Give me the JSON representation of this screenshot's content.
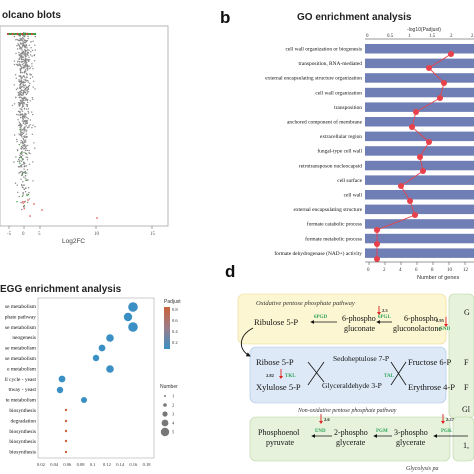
{
  "panel_a": {
    "title": "olcano blots",
    "xlabel": "Log2FC",
    "ticks": [
      "-5",
      "0",
      "5",
      "10",
      "15"
    ]
  },
  "panel_b": {
    "label": "b",
    "title": "GO enrichment analysis",
    "top_axis_label": "-log10(Padjust)",
    "top_ticks": [
      "0",
      "0.5",
      "1",
      "1.5",
      "2",
      "2.5"
    ],
    "bottom_axis_label": "Number of genes",
    "bottom_ticks": [
      "0",
      "2",
      "4",
      "6",
      "8",
      "10",
      "12",
      "14"
    ]
  },
  "panel_c": {
    "title": "EGG enrichment analysis",
    "legend_padj_title": "Padjust",
    "legend_padj_values": [
      "0.8",
      "0.6",
      "0.4",
      "0.2"
    ],
    "legend_number_title": "Number",
    "legend_number_values": [
      "1",
      "2",
      "3",
      "4",
      "5"
    ],
    "terms": [
      "se metabolism",
      "phate pathway",
      "se metabolism",
      "neogenesis",
      "se metabolism",
      "se metabolism",
      "e metabolism",
      "ll cycle - yeast",
      "ttway - yeast",
      "te metabolism",
      "biosynthesis",
      "degradation",
      "biosynthesis",
      "biosynthesis",
      "biosynthesis"
    ],
    "ticks": [
      "0.02",
      "0.04",
      "0.06",
      "0.08",
      "0.1",
      "0.12",
      "0.14",
      "0.16",
      "0.18"
    ]
  },
  "panel_d": {
    "label": "d",
    "ox_title": "Oxidative pentose phosphate pathway",
    "nonox_title": "Non-oxidative pentose phosphate pathway",
    "glyco_title": "Glycolysis pa",
    "ribulose": "Ribulose 5-P",
    "sixpg_1": "6-phospho",
    "sixpg_2": "gluconate",
    "sixpgl_1": "6-phospho",
    "sixpgl_2": "gluconolactone",
    "ribose": "Ribose 5-P",
    "xylulose": "Xylulose 5-P",
    "sedo": "Sedoheptulose 7-P",
    "glyceraldehyde": "Glyceraldehyde 3-P",
    "fructose": "Fructose 6-P",
    "erythrose": "Erythrose 4-P",
    "pep_1": "Phosphoenol",
    "pep_2": "pyruvate",
    "twopg_1": "2-phospho",
    "twopg_2": "glycerate",
    "threepg_1": "3-phospho",
    "threepg_2": "glycerate",
    "enz_6pgd": "6PGD",
    "enz_6pgl": "6PGL",
    "enz_gnd": "GND",
    "enz_tkl": "TKL",
    "enz_tal": "TAL",
    "enz_end": "END",
    "enz_pgm": "PGM",
    "enz_pgk": "PGK",
    "fold_6pgd": "2.3",
    "fold_gnd": "2.95",
    "fold_tkl": "2.82",
    "fold_end": "2.6",
    "fold_pgk": "2.37",
    "edge_g1": "G",
    "edge_f1": "F",
    "edge_f2": "F",
    "edge_g2": "Gl",
    "edge_one": "1,"
  },
  "colors": {
    "ox_bg": "#fdf6d2",
    "nonox_bg": "#dde9f6",
    "glyco_bg": "#e6f2dc",
    "go_bar": "#6f7fb6",
    "go_line": "#e8414b",
    "enzyme_green": "#2fa35a",
    "up_red": "#d22"
  }
}
